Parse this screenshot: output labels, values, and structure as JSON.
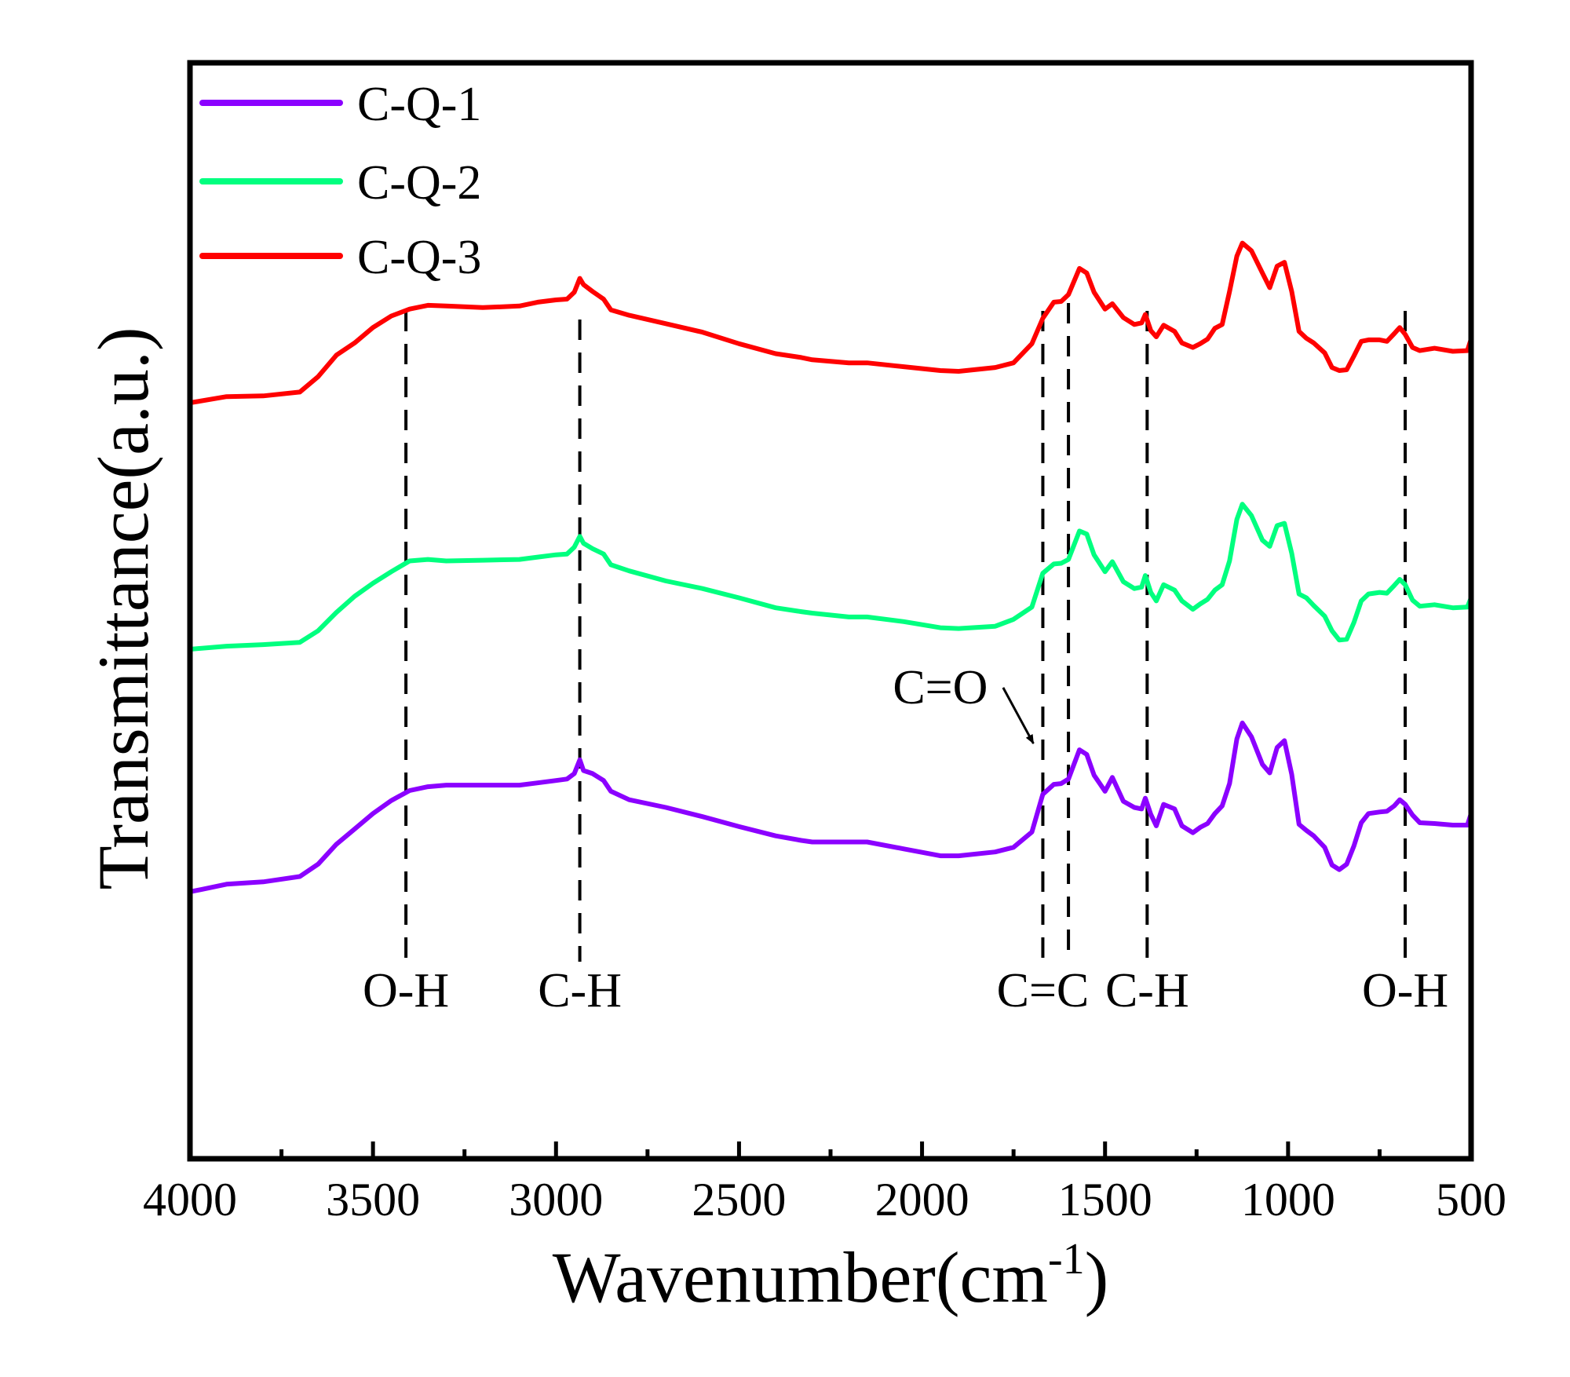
{
  "chart_data": {
    "type": "line",
    "title": "",
    "xlabel": "Wavenumber(cm",
    "xlabel_superscript": "-1",
    "xlabel_suffix": ")",
    "ylabel": "Transmittance(a.u.)",
    "xlim": [
      4000,
      500
    ],
    "ylim": [
      0,
      100
    ],
    "x_reversed": true,
    "x_ticks": [
      4000,
      3500,
      3000,
      2500,
      2000,
      1500,
      1000,
      500
    ],
    "x_tick_labels": [
      "4000",
      "3500",
      "3000",
      "2500",
      "2000",
      "1500",
      "1000",
      "500"
    ],
    "x_minor_ticks": [
      3750,
      3250,
      2750,
      2250,
      1750,
      1250,
      750
    ],
    "y_ticks_shown": false,
    "grid": false,
    "legend_position": "top-left",
    "series": [
      {
        "name": "C-Q-1",
        "color": "#8B00FF",
        "points": [
          [
            4000,
            18.4
          ],
          [
            3900,
            19.4
          ],
          [
            3800,
            19.7
          ],
          [
            3700,
            20.4
          ],
          [
            3650,
            22
          ],
          [
            3600,
            24.6
          ],
          [
            3550,
            26.6
          ],
          [
            3500,
            28.6
          ],
          [
            3450,
            30.3
          ],
          [
            3400,
            31.6
          ],
          [
            3350,
            32.1
          ],
          [
            3300,
            32.3
          ],
          [
            3200,
            32.3
          ],
          [
            3100,
            32.3
          ],
          [
            3050,
            32.6
          ],
          [
            3000,
            32.9
          ],
          [
            2970,
            33.1
          ],
          [
            2950,
            33.8
          ],
          [
            2935,
            35.6
          ],
          [
            2925,
            34.2
          ],
          [
            2900,
            33.8
          ],
          [
            2870,
            32.9
          ],
          [
            2850,
            31.5
          ],
          [
            2800,
            30.4
          ],
          [
            2700,
            29.4
          ],
          [
            2600,
            28.2
          ],
          [
            2500,
            26.9
          ],
          [
            2400,
            25.7
          ],
          [
            2330,
            25.1
          ],
          [
            2300,
            24.9
          ],
          [
            2200,
            24.9
          ],
          [
            2150,
            24.9
          ],
          [
            2050,
            24
          ],
          [
            1950,
            23.1
          ],
          [
            1900,
            23.1
          ],
          [
            1800,
            23.6
          ],
          [
            1750,
            24.2
          ],
          [
            1700,
            26.2
          ],
          [
            1670,
            31.1
          ],
          [
            1640,
            32.4
          ],
          [
            1620,
            32.5
          ],
          [
            1600,
            33.1
          ],
          [
            1570,
            36.9
          ],
          [
            1550,
            36.3
          ],
          [
            1530,
            33.6
          ],
          [
            1500,
            31.5
          ],
          [
            1480,
            33.3
          ],
          [
            1450,
            30.2
          ],
          [
            1420,
            29.4
          ],
          [
            1400,
            29.2
          ],
          [
            1390,
            30.6
          ],
          [
            1375,
            28.5
          ],
          [
            1360,
            27
          ],
          [
            1340,
            29.8
          ],
          [
            1310,
            29.2
          ],
          [
            1290,
            27
          ],
          [
            1260,
            26.1
          ],
          [
            1240,
            26.8
          ],
          [
            1220,
            27.3
          ],
          [
            1200,
            28.6
          ],
          [
            1180,
            29.6
          ],
          [
            1160,
            32.5
          ],
          [
            1140,
            38.3
          ],
          [
            1125,
            40.4
          ],
          [
            1100,
            38.6
          ],
          [
            1070,
            35
          ],
          [
            1050,
            33.9
          ],
          [
            1030,
            37.2
          ],
          [
            1010,
            38.1
          ],
          [
            990,
            33.7
          ],
          [
            970,
            27.2
          ],
          [
            950,
            26.4
          ],
          [
            930,
            25.7
          ],
          [
            900,
            24.2
          ],
          [
            880,
            21.9
          ],
          [
            860,
            21.3
          ],
          [
            840,
            22
          ],
          [
            820,
            24.4
          ],
          [
            800,
            27.4
          ],
          [
            780,
            28.6
          ],
          [
            750,
            28.8
          ],
          [
            730,
            28.9
          ],
          [
            710,
            29.6
          ],
          [
            695,
            30.4
          ],
          [
            680,
            29.8
          ],
          [
            660,
            28.4
          ],
          [
            640,
            27.4
          ],
          [
            600,
            27.3
          ],
          [
            550,
            27.1
          ],
          [
            510,
            27.1
          ],
          [
            500,
            28.6
          ]
        ]
      },
      {
        "name": "C-Q-2",
        "color": "#00FF7F",
        "points": [
          [
            4000,
            50
          ],
          [
            3900,
            50.4
          ],
          [
            3800,
            50.6
          ],
          [
            3700,
            50.9
          ],
          [
            3650,
            52.4
          ],
          [
            3600,
            54.8
          ],
          [
            3550,
            56.9
          ],
          [
            3500,
            58.6
          ],
          [
            3450,
            60.1
          ],
          [
            3400,
            61.5
          ],
          [
            3350,
            61.7
          ],
          [
            3300,
            61.5
          ],
          [
            3200,
            61.6
          ],
          [
            3100,
            61.7
          ],
          [
            3050,
            62
          ],
          [
            3000,
            62.3
          ],
          [
            2970,
            62.4
          ],
          [
            2950,
            63.3
          ],
          [
            2935,
            64.7
          ],
          [
            2925,
            63.8
          ],
          [
            2900,
            63.1
          ],
          [
            2870,
            62.4
          ],
          [
            2850,
            61
          ],
          [
            2800,
            60.2
          ],
          [
            2700,
            58.9
          ],
          [
            2600,
            57.9
          ],
          [
            2500,
            56.7
          ],
          [
            2400,
            55.4
          ],
          [
            2330,
            54.9
          ],
          [
            2300,
            54.7
          ],
          [
            2200,
            54.2
          ],
          [
            2150,
            54.2
          ],
          [
            2050,
            53.6
          ],
          [
            1950,
            52.8
          ],
          [
            1900,
            52.7
          ],
          [
            1800,
            53
          ],
          [
            1750,
            53.9
          ],
          [
            1700,
            55.5
          ],
          [
            1670,
            59.9
          ],
          [
            1640,
            61.1
          ],
          [
            1620,
            61.2
          ],
          [
            1600,
            61.7
          ],
          [
            1570,
            65.4
          ],
          [
            1550,
            65
          ],
          [
            1530,
            62.3
          ],
          [
            1500,
            60.1
          ],
          [
            1480,
            61.4
          ],
          [
            1450,
            58.8
          ],
          [
            1420,
            57.9
          ],
          [
            1400,
            58.1
          ],
          [
            1390,
            59.6
          ],
          [
            1375,
            57.4
          ],
          [
            1360,
            56.3
          ],
          [
            1340,
            58.4
          ],
          [
            1310,
            57.7
          ],
          [
            1290,
            56.3
          ],
          [
            1260,
            55.2
          ],
          [
            1240,
            55.9
          ],
          [
            1220,
            56.5
          ],
          [
            1200,
            57.7
          ],
          [
            1180,
            58.4
          ],
          [
            1160,
            61.5
          ],
          [
            1140,
            66.9
          ],
          [
            1125,
            68.9
          ],
          [
            1100,
            67.4
          ],
          [
            1070,
            64.2
          ],
          [
            1050,
            63.4
          ],
          [
            1030,
            66.1
          ],
          [
            1010,
            66.4
          ],
          [
            990,
            62.5
          ],
          [
            970,
            57.2
          ],
          [
            950,
            56.7
          ],
          [
            930,
            55.7
          ],
          [
            900,
            54.3
          ],
          [
            880,
            52.4
          ],
          [
            860,
            51.2
          ],
          [
            840,
            51.3
          ],
          [
            820,
            53.5
          ],
          [
            800,
            56.3
          ],
          [
            780,
            57.2
          ],
          [
            750,
            57.4
          ],
          [
            730,
            57.3
          ],
          [
            710,
            58.3
          ],
          [
            695,
            59.1
          ],
          [
            680,
            58.4
          ],
          [
            660,
            56.4
          ],
          [
            640,
            55.6
          ],
          [
            600,
            55.8
          ],
          [
            550,
            55.4
          ],
          [
            510,
            55.5
          ],
          [
            500,
            56.7
          ]
        ]
      },
      {
        "name": "C-Q-3",
        "color": "#FF0000",
        "points": [
          [
            4000,
            82.1
          ],
          [
            3900,
            82.9
          ],
          [
            3800,
            83
          ],
          [
            3700,
            83.5
          ],
          [
            3650,
            85.5
          ],
          [
            3600,
            88.3
          ],
          [
            3550,
            89.9
          ],
          [
            3500,
            91.9
          ],
          [
            3450,
            93.4
          ],
          [
            3400,
            94.3
          ],
          [
            3350,
            94.8
          ],
          [
            3300,
            94.7
          ],
          [
            3200,
            94.5
          ],
          [
            3100,
            94.7
          ],
          [
            3050,
            95.2
          ],
          [
            3000,
            95.5
          ],
          [
            2970,
            95.6
          ],
          [
            2950,
            96.5
          ],
          [
            2935,
            98.3
          ],
          [
            2925,
            97.5
          ],
          [
            2900,
            96.6
          ],
          [
            2870,
            95.6
          ],
          [
            2850,
            94.2
          ],
          [
            2800,
            93.5
          ],
          [
            2700,
            92.4
          ],
          [
            2600,
            91.3
          ],
          [
            2500,
            89.8
          ],
          [
            2400,
            88.5
          ],
          [
            2330,
            88
          ],
          [
            2300,
            87.7
          ],
          [
            2200,
            87.3
          ],
          [
            2150,
            87.3
          ],
          [
            2050,
            86.8
          ],
          [
            1950,
            86.3
          ],
          [
            1900,
            86.2
          ],
          [
            1800,
            86.7
          ],
          [
            1750,
            87.3
          ],
          [
            1700,
            89.8
          ],
          [
            1670,
            93.1
          ],
          [
            1640,
            95.2
          ],
          [
            1620,
            95.3
          ],
          [
            1600,
            96.2
          ],
          [
            1570,
            99.6
          ],
          [
            1550,
            99
          ],
          [
            1530,
            96.5
          ],
          [
            1500,
            94.3
          ],
          [
            1480,
            95
          ],
          [
            1450,
            93.2
          ],
          [
            1420,
            92.3
          ],
          [
            1400,
            92.5
          ],
          [
            1390,
            93.6
          ],
          [
            1375,
            91.5
          ],
          [
            1360,
            90.7
          ],
          [
            1340,
            92.2
          ],
          [
            1310,
            91.4
          ],
          [
            1290,
            89.9
          ],
          [
            1260,
            89.3
          ],
          [
            1240,
            89.8
          ],
          [
            1220,
            90.4
          ],
          [
            1200,
            91.8
          ],
          [
            1180,
            92.3
          ],
          [
            1160,
            96.6
          ],
          [
            1140,
            101.2
          ],
          [
            1125,
            102.9
          ],
          [
            1100,
            101.9
          ],
          [
            1070,
            99
          ],
          [
            1050,
            97.1
          ],
          [
            1030,
            99.9
          ],
          [
            1010,
            100.4
          ],
          [
            990,
            96.6
          ],
          [
            970,
            91.4
          ],
          [
            950,
            90.5
          ],
          [
            930,
            89.9
          ],
          [
            900,
            88.6
          ],
          [
            880,
            86.7
          ],
          [
            860,
            86.3
          ],
          [
            840,
            86.4
          ],
          [
            820,
            88.2
          ],
          [
            800,
            90.1
          ],
          [
            780,
            90.3
          ],
          [
            750,
            90.3
          ],
          [
            730,
            90.1
          ],
          [
            710,
            91.1
          ],
          [
            695,
            91.9
          ],
          [
            680,
            91
          ],
          [
            660,
            89.3
          ],
          [
            640,
            88.9
          ],
          [
            600,
            89.2
          ],
          [
            550,
            88.8
          ],
          [
            510,
            88.9
          ],
          [
            500,
            90.4
          ]
        ]
      }
    ],
    "reference_lines": [
      {
        "x": 3410,
        "label": "O-H"
      },
      {
        "x": 2935,
        "label": "C-H"
      },
      {
        "x": 1670,
        "label": "C=C"
      },
      {
        "x": 1600,
        "label": ""
      },
      {
        "x": 1385,
        "label": "C-H"
      },
      {
        "x": 680,
        "label": "O-H"
      }
    ],
    "annotations": [
      {
        "text": "C=O",
        "arrow_to_x": 1670,
        "arrow_to_y": 36.5,
        "text_x": 1950,
        "text_y": 45
      }
    ]
  }
}
